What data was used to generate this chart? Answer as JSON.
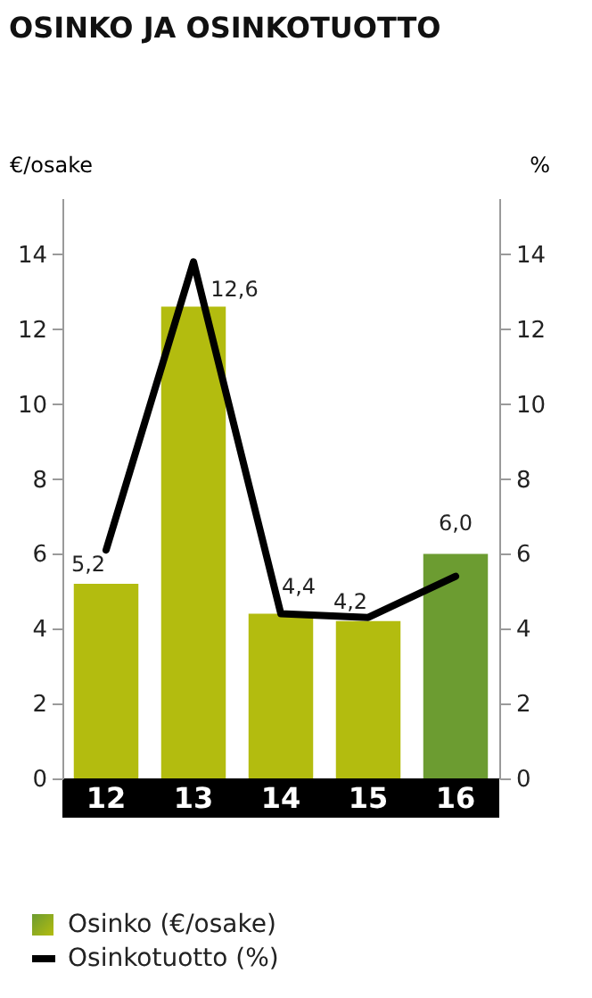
{
  "chart_data": {
    "type": "bar",
    "title": "OSINKO JA OSINKOTUOTTO",
    "categories": [
      "12",
      "13",
      "14",
      "15",
      "16"
    ],
    "series": [
      {
        "name": "Osinko (€/osake)",
        "type": "bar",
        "colors": [
          "#b3bc0f",
          "#b3bc0f",
          "#b3bc0f",
          "#b3bc0f",
          "#6c9c31"
        ],
        "values": [
          5.2,
          12.6,
          4.4,
          4.2,
          6.0
        ],
        "value_labels": [
          "5,2",
          "12,6",
          "4,4",
          "4,2",
          "6,0"
        ]
      },
      {
        "name": "Osinkotuotto (%)",
        "type": "line",
        "axis": "y2",
        "color": "#000000",
        "values": [
          6.1,
          13.8,
          4.4,
          4.3,
          5.4
        ]
      }
    ],
    "ylabel": "€/osake",
    "y2label": "%",
    "ylim": [
      0,
      15.5
    ],
    "yticks": [
      0,
      2,
      4,
      6,
      8,
      10,
      12,
      14
    ],
    "y2lim": [
      0,
      15.5
    ],
    "y2ticks": [
      0,
      2,
      4,
      6,
      8,
      10,
      12,
      14
    ],
    "grid": false,
    "legend": "bottom"
  }
}
